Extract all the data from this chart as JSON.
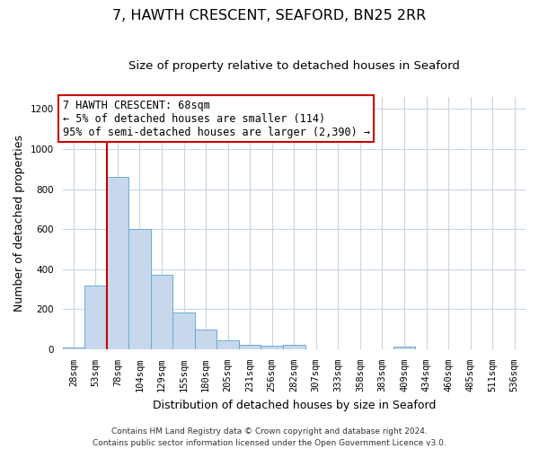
{
  "title": "7, HAWTH CRESCENT, SEAFORD, BN25 2RR",
  "subtitle": "Size of property relative to detached houses in Seaford",
  "xlabel": "Distribution of detached houses by size in Seaford",
  "ylabel": "Number of detached properties",
  "bar_labels": [
    "28sqm",
    "53sqm",
    "78sqm",
    "104sqm",
    "129sqm",
    "155sqm",
    "180sqm",
    "205sqm",
    "231sqm",
    "256sqm",
    "282sqm",
    "307sqm",
    "333sqm",
    "358sqm",
    "383sqm",
    "409sqm",
    "434sqm",
    "460sqm",
    "485sqm",
    "511sqm",
    "536sqm"
  ],
  "bar_values": [
    10,
    320,
    860,
    600,
    370,
    185,
    100,
    45,
    20,
    18,
    20,
    0,
    0,
    0,
    0,
    15,
    0,
    0,
    0,
    0,
    0
  ],
  "bar_color": "#c8d8ec",
  "bar_edge_color": "#6aaad4",
  "vline_x": 1.5,
  "vline_color": "#cc0000",
  "annotation_text": "7 HAWTH CRESCENT: 68sqm\n← 5% of detached houses are smaller (114)\n95% of semi-detached houses are larger (2,390) →",
  "annotation_box_color": "#ffffff",
  "annotation_box_edge": "#cc0000",
  "ylim": [
    0,
    1260
  ],
  "yticks": [
    0,
    200,
    400,
    600,
    800,
    1000,
    1200
  ],
  "footer1": "Contains HM Land Registry data © Crown copyright and database right 2024.",
  "footer2": "Contains public sector information licensed under the Open Government Licence v3.0.",
  "bg_color": "#ffffff",
  "grid_color": "#c8d4e4",
  "title_fontsize": 11.5,
  "subtitle_fontsize": 9.5,
  "axis_label_fontsize": 9,
  "tick_fontsize": 7.5,
  "annotation_fontsize": 8.5,
  "footer_fontsize": 6.5
}
